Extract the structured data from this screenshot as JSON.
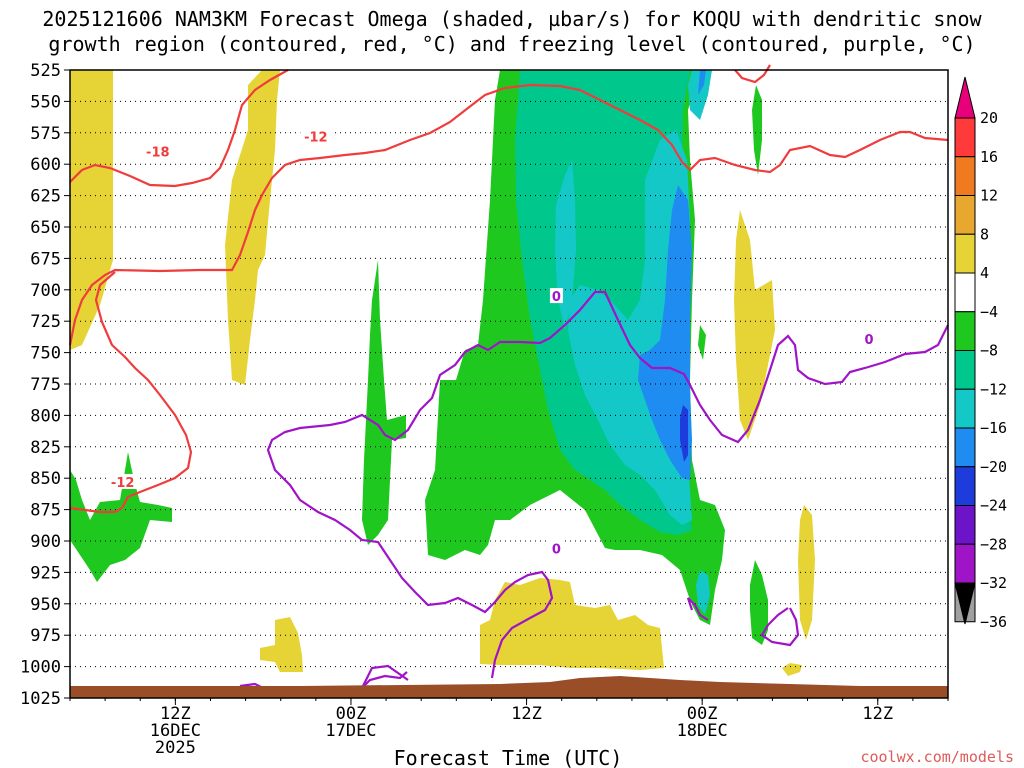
{
  "chart_data": {
    "type": "heatmap",
    "title_line1": "2025121606 NAM3KM Forecast Omega (shaded, µbar/s) for KOQU with dendritic snow",
    "title_line2": "growth region (contoured, red, °C) and freezing level (contoured, purple, °C)",
    "xlabel": "Forecast Time (UTC)",
    "credit": "coolwx.com/models",
    "y_ticks": [
      "525",
      "550",
      "575",
      "600",
      "625",
      "650",
      "675",
      "700",
      "725",
      "750",
      "775",
      "800",
      "825",
      "850",
      "875",
      "900",
      "925",
      "950",
      "975",
      "1000",
      "1025"
    ],
    "y_range": [
      525,
      1025
    ],
    "x_range_hours": [
      -6,
      44
    ],
    "grid": true,
    "x_ticks": [
      {
        "hour": 0,
        "line1": "12Z",
        "line2": "16DEC",
        "line3": "2025"
      },
      {
        "hour": 10,
        "line1": "00Z",
        "line2": "17DEC",
        "line3": ""
      },
      {
        "hour": 20,
        "line1": "12Z",
        "line2": "",
        "line3": ""
      },
      {
        "hour": 30,
        "line1": "00Z",
        "line2": "18DEC",
        "line3": ""
      },
      {
        "hour": 40,
        "line1": "12Z",
        "line2": "",
        "line3": ""
      }
    ],
    "colorbar": {
      "labels": [
        "20",
        "16",
        "12",
        "8",
        "4",
        "−4",
        "−8",
        "−12",
        "−16",
        "−20",
        "−24",
        "−28",
        "−32",
        "−36"
      ],
      "colors": [
        "#e8007a",
        "#ff3a3a",
        "#f07a20",
        "#e8a830",
        "#e6d436",
        "#ffffff",
        "#1ec81e",
        "#00c88c",
        "#14c8c8",
        "#1e8cf0",
        "#1e3cdc",
        "#6e14c8",
        "#a014c8",
        "#a0a0a0",
        "#000000"
      ]
    },
    "contours": [
      {
        "name": "-18",
        "color": "#f03c3c",
        "label_hour": -1,
        "label_p": 590
      },
      {
        "name": "-12",
        "color": "#f03c3c",
        "label_hour": 8,
        "label_p": 578
      },
      {
        "name": "-12",
        "color": "#f03c3c",
        "label_hour": -3,
        "label_p": 853
      },
      {
        "name": "0",
        "color": "#a014c8",
        "label_hour": 21.7,
        "label_p": 705
      },
      {
        "name": "0",
        "color": "#a014c8",
        "label_hour": 39.5,
        "label_p": 739
      },
      {
        "name": "0",
        "color": "#a014c8",
        "label_hour": 21.7,
        "label_p": 906
      }
    ]
  }
}
